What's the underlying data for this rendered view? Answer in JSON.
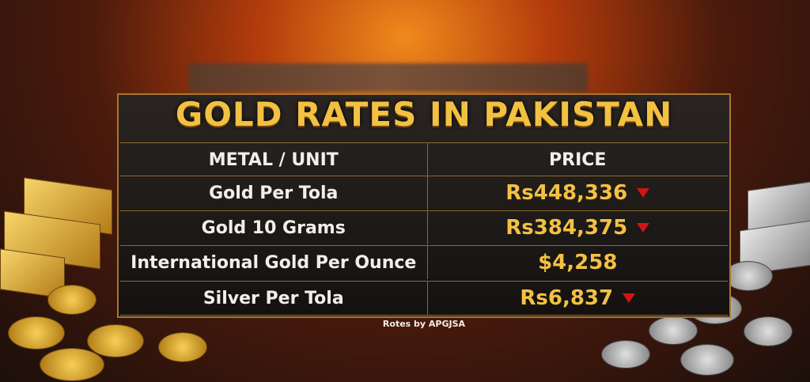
{
  "header": {
    "title": "GOLD RATES IN PAKISTAN"
  },
  "table": {
    "columns": [
      "METAL / UNIT",
      "PRICE"
    ],
    "rows": [
      [
        "Gold Per Tola",
        "Rs448,336"
      ],
      [
        "Gold 10 Grams",
        "Rs384,375"
      ],
      [
        "International Gold Per Ounce",
        "$4,258"
      ],
      [
        "Silver Per Tola",
        "Rs6,837"
      ]
    ]
  },
  "footer": {
    "source": "Rotes by APGJSA"
  }
}
